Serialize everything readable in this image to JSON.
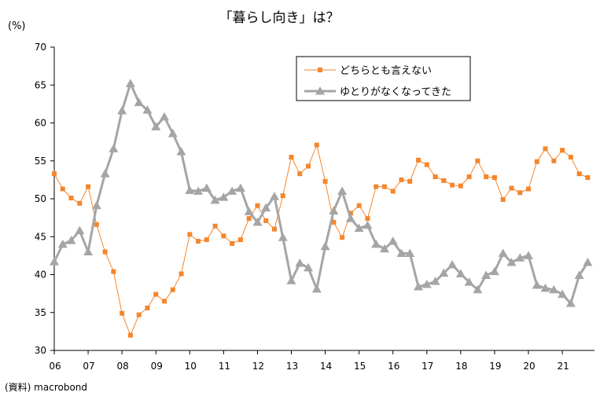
{
  "chart_data": {
    "type": "line",
    "title": "「暮らし向き」は？",
    "ylabel": "(%)",
    "source": "(資料) macrobond",
    "ylim": [
      30,
      70
    ],
    "yticks": [
      "30",
      "35",
      "40",
      "45",
      "50",
      "55",
      "60",
      "65",
      "70"
    ],
    "xlim": [
      2006.0,
      2021.95
    ],
    "xticks": [
      "06",
      "07",
      "08",
      "09",
      "10",
      "11",
      "12",
      "13",
      "14",
      "15",
      "16",
      "17",
      "18",
      "19",
      "20",
      "21"
    ],
    "legend_position": "top-right, inside plot",
    "grid": false,
    "series": [
      {
        "name": "どちらとも言えない",
        "color": "#f4862c",
        "marker": "square",
        "x": [
          2006.0,
          2006.25,
          2006.5,
          2006.75,
          2007.0,
          2007.25,
          2007.5,
          2007.75,
          2008.0,
          2008.25,
          2008.5,
          2008.75,
          2009.0,
          2009.25,
          2009.5,
          2009.75,
          2010.0,
          2010.25,
          2010.5,
          2010.75,
          2011.0,
          2011.25,
          2011.5,
          2011.75,
          2012.0,
          2012.25,
          2012.5,
          2012.75,
          2013.0,
          2013.25,
          2013.5,
          2013.75,
          2014.0,
          2014.25,
          2014.5,
          2014.75,
          2015.0,
          2015.25,
          2015.5,
          2015.75,
          2016.0,
          2016.25,
          2016.5,
          2016.75,
          2017.0,
          2017.25,
          2017.5,
          2017.75,
          2018.0,
          2018.25,
          2018.5,
          2018.75,
          2019.0,
          2019.25,
          2019.5,
          2019.75,
          2020.0,
          2020.25,
          2020.5,
          2020.75,
          2021.0,
          2021.25,
          2021.5,
          2021.75
        ],
        "values": [
          53.3,
          51.3,
          50.1,
          49.4,
          51.6,
          46.6,
          43.0,
          40.4,
          34.9,
          32.0,
          34.7,
          35.6,
          37.4,
          36.5,
          38.0,
          40.1,
          45.3,
          44.4,
          44.6,
          46.4,
          45.1,
          44.1,
          44.6,
          47.4,
          49.1,
          47.1,
          46.0,
          50.4,
          55.5,
          53.3,
          54.3,
          57.1,
          52.3,
          46.9,
          44.9,
          48.1,
          49.1,
          47.4,
          51.6,
          51.6,
          51.0,
          52.5,
          52.3,
          55.1,
          54.5,
          52.9,
          52.4,
          51.8,
          51.7,
          52.9,
          55.0,
          52.9,
          52.8,
          49.9,
          51.4,
          50.8,
          51.3,
          54.9,
          56.6,
          55.0,
          56.4,
          55.5,
          53.3,
          52.8
        ]
      },
      {
        "name": "ゆとりがなくなってきた",
        "color": "#a5a5a5",
        "marker": "triangle",
        "x": [
          2006.0,
          2006.25,
          2006.5,
          2006.75,
          2007.0,
          2007.25,
          2007.5,
          2007.75,
          2008.0,
          2008.25,
          2008.5,
          2008.75,
          2009.0,
          2009.25,
          2009.5,
          2009.75,
          2010.0,
          2010.25,
          2010.5,
          2010.75,
          2011.0,
          2011.25,
          2011.5,
          2011.75,
          2012.0,
          2012.25,
          2012.5,
          2012.75,
          2013.0,
          2013.25,
          2013.5,
          2013.75,
          2014.0,
          2014.25,
          2014.5,
          2014.75,
          2015.0,
          2015.25,
          2015.5,
          2015.75,
          2016.0,
          2016.25,
          2016.5,
          2016.75,
          2017.0,
          2017.25,
          2017.5,
          2017.75,
          2018.0,
          2018.25,
          2018.5,
          2018.75,
          2019.0,
          2019.25,
          2019.5,
          2019.75,
          2020.0,
          2020.25,
          2020.5,
          2020.75,
          2021.0,
          2021.25,
          2021.5,
          2021.75
        ],
        "values": [
          41.7,
          44.0,
          44.5,
          45.8,
          43.0,
          49.1,
          53.3,
          56.6,
          61.6,
          65.2,
          62.7,
          61.7,
          59.5,
          60.8,
          58.6,
          56.2,
          51.1,
          51.0,
          51.4,
          49.8,
          50.2,
          51.0,
          51.4,
          48.3,
          46.9,
          48.8,
          50.3,
          44.9,
          39.2,
          41.5,
          40.9,
          38.1,
          43.7,
          48.4,
          51.0,
          47.4,
          46.1,
          46.5,
          44.0,
          43.4,
          44.4,
          42.8,
          42.8,
          38.4,
          38.7,
          39.1,
          40.2,
          41.3,
          40.1,
          39.0,
          38.0,
          39.9,
          40.4,
          42.8,
          41.6,
          42.2,
          42.5,
          38.6,
          38.2,
          38.0,
          37.4,
          36.2,
          39.9,
          41.6
        ]
      }
    ]
  }
}
